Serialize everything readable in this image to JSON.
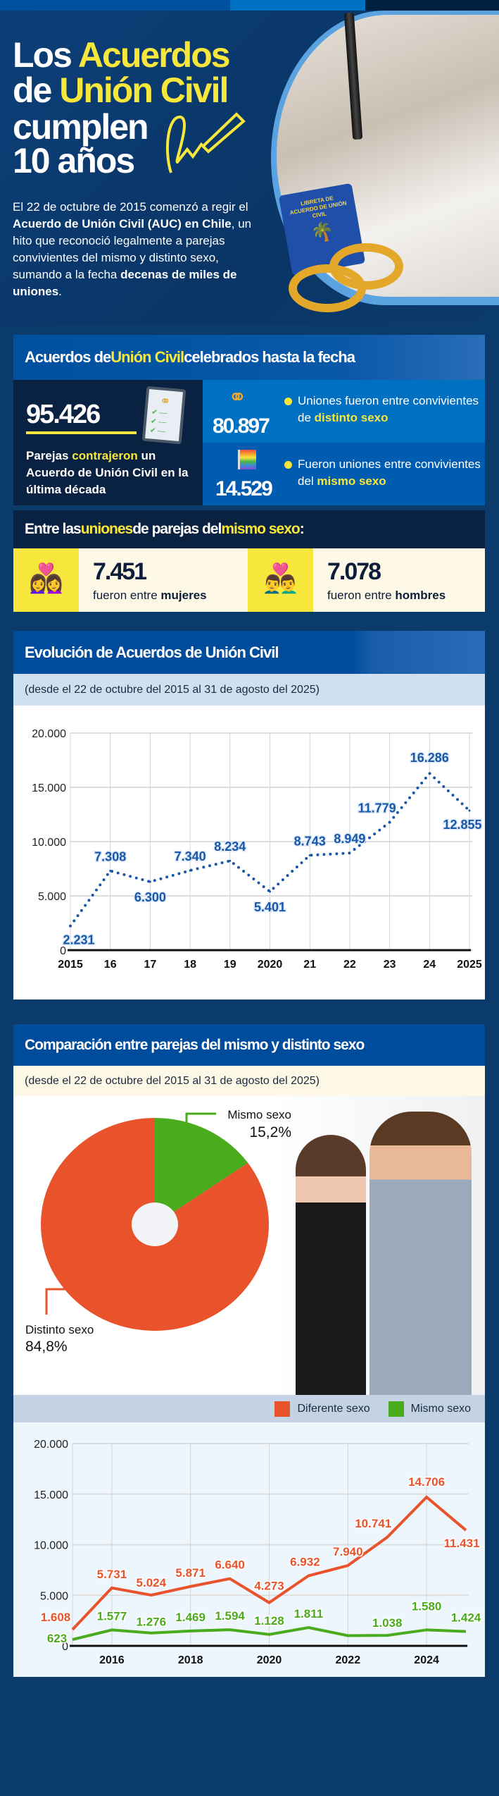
{
  "hero": {
    "title_lines": [
      [
        "Los ",
        "Acuerdos"
      ],
      [
        "de ",
        "Unión Civil"
      ],
      [
        "cumplen",
        ""
      ],
      [
        "10 años",
        ""
      ]
    ],
    "intro": {
      "p1": "El 22 de octubre de 2015 comenzó a regir el ",
      "b1": "Acuerdo de Unión Civil (AUC) en Chile",
      "p2": ", un hito que reconoció legalmente a parejas convivientes del mismo y distinto sexo, sumando a la fecha ",
      "b2": "decenas de miles de uniones",
      "p3": "."
    },
    "booklet_text": "LIBRETA DE ACUERDO DE UNIÓN CIVIL"
  },
  "stats": {
    "header": {
      "a": "Acuerdos de ",
      "b": "Unión Civil",
      "c": " celebrados hasta la fecha"
    },
    "total": "95.426",
    "total_desc": {
      "a": "Parejas ",
      "b": "contrajeron",
      "c": " un Acuerdo de Unión Civil en la última década"
    },
    "distinto": {
      "value": "80.897",
      "a": "Uniones fueron entre convivientes de ",
      "b": "distinto sexo",
      "icon": "rings-icon"
    },
    "mismo": {
      "value": "14.529",
      "a": "Fueron uniones entre convivientes del ",
      "b": "mismo sexo",
      "icon": "rainbow-flag-icon"
    },
    "same_header": {
      "a": "Entre las ",
      "b": "uniones",
      "c": " de parejas del ",
      "d": "mismo sexo",
      "e": ":"
    },
    "mujeres": {
      "value": "7.451",
      "a": "fueron entre ",
      "b": "mujeres",
      "icon": "women-couple-icon"
    },
    "hombres": {
      "value": "7.078",
      "a": "fueron entre ",
      "b": "hombres",
      "icon": "men-couple-icon"
    }
  },
  "evolution": {
    "title": "Evolución de Acuerdos de Unión Civil",
    "subtitle": "(desde el 22 de octubre del 2015 al 31 de agosto del 2025)"
  },
  "comparison": {
    "title": "Comparación entre parejas del mismo y distinto sexo",
    "subtitle": "(desde el 22 de octubre del 2015 al 31 de agosto del 2025)"
  },
  "colors": {
    "yellow": "#f7e63c",
    "blue": "#004c9c",
    "orange": "#e8532c",
    "green": "#4aab1c",
    "line_blue": "#1a57a8"
  },
  "chart_data": [
    {
      "type": "line",
      "style": "dotted",
      "x": [
        2015,
        2016,
        2017,
        2018,
        2019,
        2020,
        2021,
        2022,
        2023,
        2024,
        2025
      ],
      "xtick_labels": [
        "2015",
        "16",
        "17",
        "18",
        "19",
        "2020",
        "21",
        "22",
        "23",
        "24",
        "2025"
      ],
      "values": [
        2231,
        7308,
        6300,
        7340,
        8234,
        5401,
        8743,
        8949,
        11779,
        16286,
        12855
      ],
      "data_labels": [
        "2.231",
        "7.308",
        "6.300",
        "7.340",
        "8.234",
        "5.401",
        "8.743",
        "8.949",
        "11.779",
        "16.286",
        "12.855"
      ],
      "ylim": [
        0,
        20000
      ],
      "yticks": [
        0,
        5000,
        10000,
        15000,
        20000
      ],
      "ytick_labels": [
        "0",
        "5.000",
        "10.000",
        "15.000",
        "20.000"
      ],
      "grid": true
    },
    {
      "type": "pie",
      "donut": true,
      "slices": [
        {
          "name": "Mismo sexo",
          "value": 15.2,
          "label": "15,2%",
          "color": "#4aab1c"
        },
        {
          "name": "Distinto sexo",
          "value": 84.8,
          "label": "84,8%",
          "color": "#e8532c"
        }
      ]
    },
    {
      "type": "line",
      "x": [
        2015,
        2016,
        2017,
        2018,
        2019,
        2020,
        2021,
        2022,
        2023,
        2024,
        2025
      ],
      "xtick_labels": [
        "2016",
        "2018",
        "2020",
        "2022",
        "2024"
      ],
      "xticks": [
        2016,
        2018,
        2020,
        2022,
        2024
      ],
      "legend": "top-right",
      "series": [
        {
          "name": "Diferente sexo",
          "color": "#e8532c",
          "values": [
            1608,
            5731,
            5024,
            5871,
            6640,
            4273,
            6932,
            7940,
            10741,
            14706,
            11431
          ],
          "data_labels": [
            "1.608",
            "5.731",
            "5.024",
            "5.871",
            "6.640",
            "4.273",
            "6.932",
            "7.940",
            "10.741",
            "14.706",
            "11.431"
          ]
        },
        {
          "name": "Mismo sexo",
          "color": "#4aab1c",
          "values": [
            623,
            1577,
            1276,
            1469,
            1594,
            1128,
            1811,
            1009,
            1038,
            1580,
            1424
          ],
          "data_labels": [
            "623",
            "1.577",
            "1.276",
            "1.469",
            "1.594",
            "1.128",
            "1.811",
            "",
            "1.038",
            "1.580",
            "1.424"
          ]
        }
      ],
      "ylim": [
        0,
        20000
      ],
      "yticks": [
        0,
        5000,
        10000,
        15000,
        20000
      ],
      "ytick_labels": [
        "0",
        "5.000",
        "10.000",
        "15.000",
        "20.000"
      ],
      "grid": true
    }
  ]
}
